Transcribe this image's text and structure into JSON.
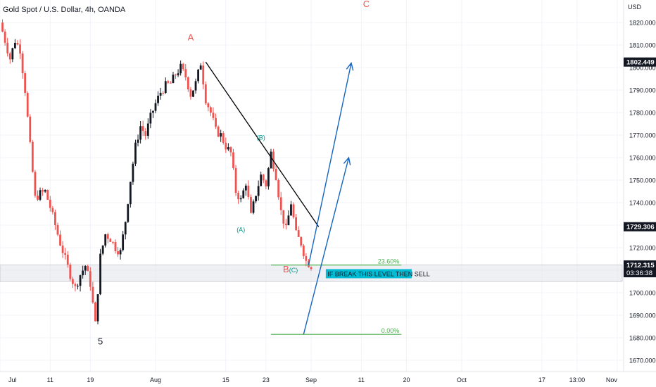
{
  "header": {
    "title": "Gold Spot / U.S. Dollar, 4h, OANDA"
  },
  "chart_data": {
    "type": "candlestick",
    "currency_label": "USD",
    "ylim": [
      1665,
      1830
    ],
    "yticks": [
      1670,
      1680,
      1690,
      1700,
      1710,
      1720,
      1730,
      1740,
      1750,
      1760,
      1770,
      1780,
      1790,
      1800,
      1810,
      1820
    ],
    "ytick_labels": [
      "1670.000",
      "1680.000",
      "1690.000",
      "1700.000",
      "1710.000",
      "1720.000",
      "1730.000",
      "1740.000",
      "1750.000",
      "1760.000",
      "1770.000",
      "1780.000",
      "1790.000",
      "1800.000",
      "1810.000",
      "1820.000"
    ],
    "xlim_days": [
      0,
      124
    ],
    "xticks": [
      {
        "day": 0,
        "label": "Jul"
      },
      {
        "day": 10,
        "label": "11"
      },
      {
        "day": 18,
        "label": "19"
      },
      {
        "day": 31,
        "label": "Aug"
      },
      {
        "day": 45,
        "label": "15"
      },
      {
        "day": 53,
        "label": "23"
      },
      {
        "day": 62,
        "label": "Sep"
      },
      {
        "day": 72,
        "label": "11"
      },
      {
        "day": 81,
        "label": "20"
      },
      {
        "day": 92,
        "label": "Oct"
      },
      {
        "day": 108,
        "label": "17"
      },
      {
        "day": 115,
        "label": "13:00"
      },
      {
        "day": 123,
        "label": "Nov"
      }
    ],
    "price_path_days": [
      0,
      1,
      2,
      3,
      4,
      5,
      6,
      7,
      8,
      9,
      10,
      11,
      12,
      13,
      14,
      15,
      16,
      17,
      18,
      19,
      20,
      21,
      22,
      23,
      24,
      25,
      26,
      27,
      28,
      29,
      30,
      31,
      32,
      33,
      34,
      35,
      36,
      37,
      38,
      39,
      40,
      41,
      42,
      43,
      44,
      45,
      46,
      47,
      48,
      49,
      50,
      51,
      52,
      53,
      54,
      55,
      56,
      57,
      58,
      59,
      60,
      61,
      62
    ],
    "price_path": [
      1820,
      1812,
      1804,
      1812,
      1808,
      1790,
      1765,
      1742,
      1744,
      1745,
      1738,
      1730,
      1722,
      1715,
      1708,
      1702,
      1708,
      1712,
      1704,
      1686,
      1716,
      1726,
      1724,
      1720,
      1718,
      1732,
      1750,
      1765,
      1774,
      1770,
      1778,
      1784,
      1789,
      1792,
      1793,
      1797,
      1800,
      1796,
      1788,
      1793,
      1802,
      1786,
      1780,
      1772,
      1770,
      1765,
      1762,
      1745,
      1741,
      1749,
      1734,
      1744,
      1752,
      1748,
      1762,
      1752,
      1736,
      1728,
      1740,
      1726,
      1722,
      1714,
      1712
    ],
    "price_labels": [
      {
        "value": "1802.449",
        "price": 1802.449,
        "color": "#131722"
      },
      {
        "value": "1729.306",
        "price": 1729.306,
        "color": "#131722"
      },
      {
        "value": "1712.315",
        "price": 1712.315,
        "color": "#131722"
      }
    ],
    "countdown": "03:36:38",
    "wave_labels": [
      {
        "text": "A",
        "day": 38,
        "price": 1812,
        "color": "#ef5350"
      },
      {
        "text": "(B)",
        "day": 52,
        "price": 1768,
        "color": "#009688"
      },
      {
        "text": "(A)",
        "day": 48,
        "price": 1727,
        "color": "#009688"
      },
      {
        "text": "B",
        "day": 57,
        "price": 1709,
        "color": "#ef5350"
      },
      {
        "text": "(C)",
        "day": 58.5,
        "price": 1709,
        "color": "#009688"
      },
      {
        "text": "5",
        "day": 20,
        "price": 1677,
        "color": "#131722"
      },
      {
        "text": "C",
        "day": 73,
        "price": 1835,
        "color": "#ef5350"
      }
    ],
    "trendline": {
      "start": [
        41,
        1802.449
      ],
      "end": [
        63.5,
        1729.306
      ],
      "color": "#000000"
    },
    "fib_levels": [
      {
        "label": "23.60%",
        "price": 1712.315,
        "x_start_day": 54,
        "x_end_day": 80,
        "color": "#4caf50"
      },
      {
        "label": "0.00%",
        "price": 1681.5,
        "x_start_day": 54,
        "x_end_day": 80,
        "color": "#4caf50"
      }
    ],
    "support_zone": {
      "top": 1712.3,
      "bottom": 1705.0
    },
    "note": {
      "text": "IF BREAK THIS LEVEL THEN SELL",
      "day": 65,
      "price": 1708.3,
      "bg": "#00bcd4"
    },
    "projection_arrows": [
      {
        "start": [
          61.5,
          1712.315
        ],
        "end": [
          70,
          1802
        ],
        "color": "#1565c0"
      },
      {
        "start": [
          60.5,
          1681.5
        ],
        "end": [
          69.5,
          1760
        ],
        "color": "#1565c0"
      }
    ],
    "colors": {
      "up": "#131722",
      "down": "#ef5350",
      "grid": "#f0f3fa",
      "axis_text": "#131722"
    }
  }
}
